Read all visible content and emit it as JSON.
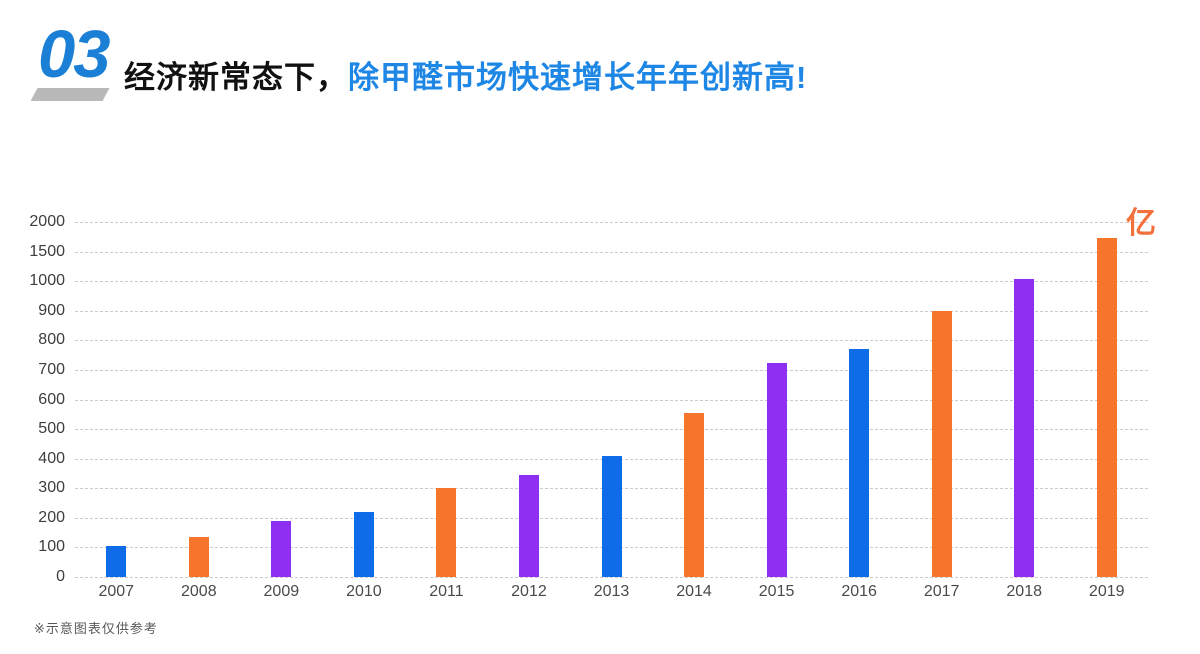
{
  "header": {
    "section_number": "03",
    "title_black": "经济新常态下，",
    "title_blue": "除甲醛市场快速增长年年创新高!"
  },
  "chart_data": {
    "type": "bar",
    "title": "",
    "xlabel": "",
    "ylabel": "",
    "unit_label": "亿",
    "categories": [
      "2007",
      "2008",
      "2009",
      "2010",
      "2011",
      "2012",
      "2013",
      "2014",
      "2015",
      "2016",
      "2017",
      "2018",
      "2019"
    ],
    "values": [
      105,
      135,
      190,
      220,
      300,
      345,
      410,
      555,
      725,
      770,
      900,
      1030,
      1730
    ],
    "bar_colors": [
      "#0e6ce9",
      "#f5762a",
      "#8e30f2",
      "#0e6ce9",
      "#f5762a",
      "#8e30f2",
      "#0e6ce9",
      "#f5762a",
      "#8e30f2",
      "#0e6ce9",
      "#f5762a",
      "#8e30f2",
      "#f5762a"
    ],
    "y_ticks": [
      0,
      100,
      200,
      300,
      400,
      500,
      600,
      700,
      800,
      900,
      1000,
      1500,
      2000
    ],
    "y_axis_scale": "piecewise-linear, equal spacing between consecutive ticks",
    "ylim": [
      0,
      2000
    ],
    "grid": "horizontal-dashed",
    "legend_position": "none"
  },
  "footer": {
    "note": "※示意图表仅供参考"
  },
  "colors": {
    "bar_blue": "#0e6ce9",
    "bar_orange": "#f5762a",
    "bar_purple": "#8e30f2",
    "section_number_blue": "#1b80d5",
    "title_blue": "#1e87e5",
    "title_black": "#111111",
    "unit_orange": "#f2703c",
    "gridline_gray": "#cbcbcb",
    "axis_text_gray": "#3d3d3d",
    "note_gray": "#595959"
  }
}
